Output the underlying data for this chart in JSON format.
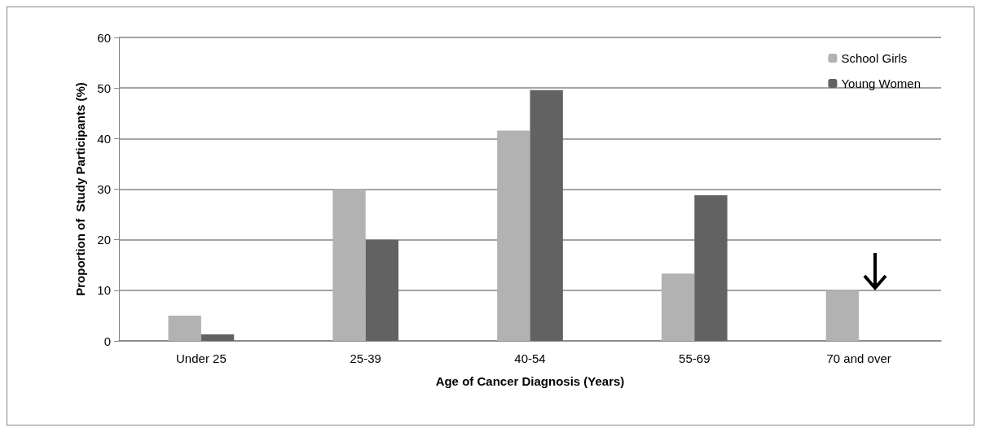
{
  "chart_data": {
    "type": "bar",
    "xlabel": "Age of Cancer Diagnosis (Years)",
    "ylabel": "Proportion of  Study Participants (%)",
    "categories": [
      "Under 25",
      "25-39",
      "40-54",
      "55-69",
      "70 and over"
    ],
    "series": [
      {
        "name": "School Girls",
        "color": "#b2b2b2",
        "values": [
          5,
          30,
          41.6,
          13.3,
          10
        ]
      },
      {
        "name": "Young Women",
        "color": "#626262",
        "values": [
          1.3,
          20,
          49.6,
          28.8,
          0
        ]
      }
    ],
    "ylim": [
      0,
      60
    ],
    "yticks": [
      0,
      10,
      20,
      30,
      40,
      50,
      60
    ],
    "grid": "y",
    "legend": "top right"
  }
}
